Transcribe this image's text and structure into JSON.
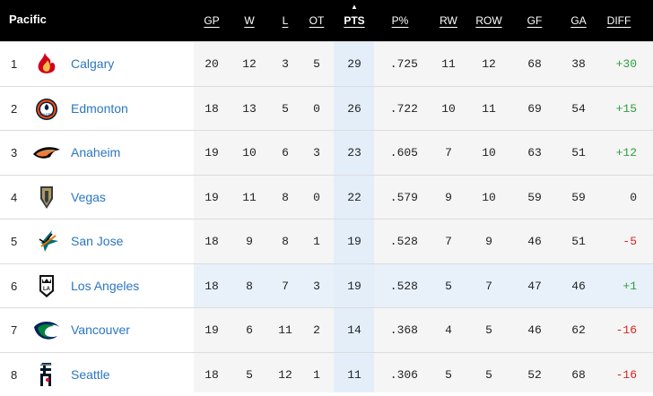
{
  "division": "Pacific",
  "columns": [
    "GP",
    "W",
    "L",
    "OT",
    "PTS",
    "P%",
    "RW",
    "ROW",
    "GF",
    "GA",
    "DIFF"
  ],
  "sorted_column": "PTS",
  "colors": {
    "header_bg": "#000000",
    "link": "#2b76c1",
    "positive": "#2e9e3e",
    "negative": "#d42424",
    "sorted_col_bg": "#e3eef9"
  },
  "teams": [
    {
      "rank": "1",
      "name": "Calgary",
      "logo": "flames-logo-icon",
      "gp": "20",
      "w": "12",
      "l": "3",
      "ot": "5",
      "pts": "29",
      "pct": ".725",
      "rw": "11",
      "row": "12",
      "gf": "68",
      "ga": "38",
      "diff": "+30"
    },
    {
      "rank": "2",
      "name": "Edmonton",
      "logo": "oilers-logo-icon",
      "gp": "18",
      "w": "13",
      "l": "5",
      "ot": "0",
      "pts": "26",
      "pct": ".722",
      "rw": "10",
      "row": "11",
      "gf": "69",
      "ga": "54",
      "diff": "+15"
    },
    {
      "rank": "3",
      "name": "Anaheim",
      "logo": "ducks-logo-icon",
      "gp": "19",
      "w": "10",
      "l": "6",
      "ot": "3",
      "pts": "23",
      "pct": ".605",
      "rw": "7",
      "row": "10",
      "gf": "63",
      "ga": "51",
      "diff": "+12"
    },
    {
      "rank": "4",
      "name": "Vegas",
      "logo": "golden-knights-logo-icon",
      "gp": "19",
      "w": "11",
      "l": "8",
      "ot": "0",
      "pts": "22",
      "pct": ".579",
      "rw": "9",
      "row": "10",
      "gf": "59",
      "ga": "59",
      "diff": "0"
    },
    {
      "rank": "5",
      "name": "San Jose",
      "logo": "sharks-logo-icon",
      "gp": "18",
      "w": "9",
      "l": "8",
      "ot": "1",
      "pts": "19",
      "pct": ".528",
      "rw": "7",
      "row": "9",
      "gf": "46",
      "ga": "51",
      "diff": "-5"
    },
    {
      "rank": "6",
      "name": "Los Angeles",
      "logo": "kings-logo-icon",
      "gp": "18",
      "w": "8",
      "l": "7",
      "ot": "3",
      "pts": "19",
      "pct": ".528",
      "rw": "5",
      "row": "7",
      "gf": "47",
      "ga": "46",
      "diff": "+1"
    },
    {
      "rank": "7",
      "name": "Vancouver",
      "logo": "canucks-logo-icon",
      "gp": "19",
      "w": "6",
      "l": "11",
      "ot": "2",
      "pts": "14",
      "pct": ".368",
      "rw": "4",
      "row": "5",
      "gf": "46",
      "ga": "62",
      "diff": "-16"
    },
    {
      "rank": "8",
      "name": "Seattle",
      "logo": "kraken-logo-icon",
      "gp": "18",
      "w": "5",
      "l": "12",
      "ot": "1",
      "pts": "11",
      "pct": ".306",
      "rw": "5",
      "row": "5",
      "gf": "52",
      "ga": "68",
      "diff": "-16"
    }
  ]
}
